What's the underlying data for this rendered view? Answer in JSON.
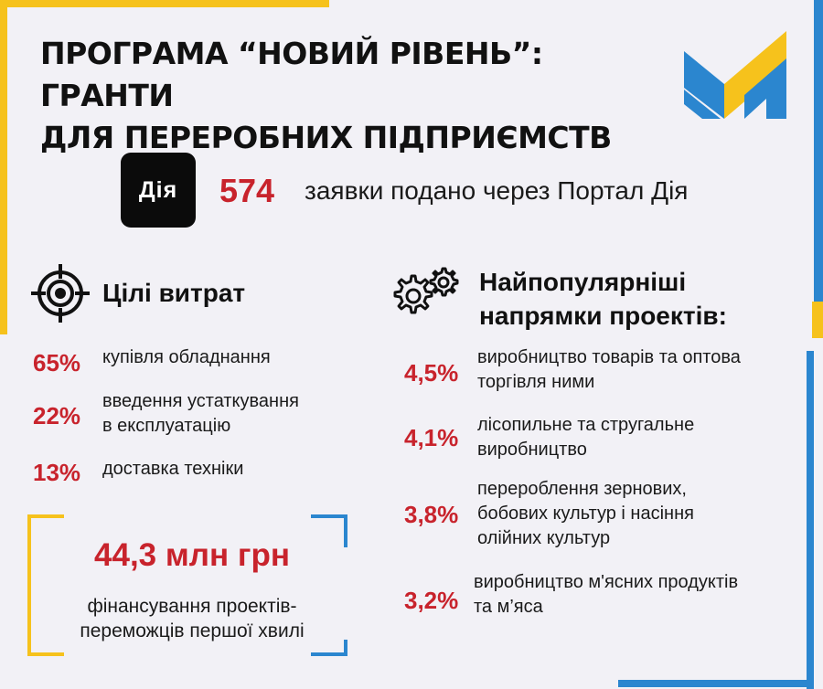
{
  "header": {
    "title_line1": "ПРОГРАМА “НОВИЙ РІВЕНЬ”: ГРАНТИ",
    "title_line2": "ДЛЯ ПЕРЕРОБНИХ ПІДПРИЄМСТВ"
  },
  "diia": {
    "badge_label": "Дія",
    "count": "574",
    "count_text": "заявки подано через Портал Дія"
  },
  "costs": {
    "title": "Цілі витрат",
    "icon": "target-icon",
    "items": [
      {
        "percent": "65%",
        "line1": "купівля обладнання",
        "line2": ""
      },
      {
        "percent": "22%",
        "line1": "введення устаткування",
        "line2": "в експлуатацію"
      },
      {
        "percent": "13%",
        "line1": "доставка техніки",
        "line2": ""
      }
    ]
  },
  "popular": {
    "title_line1": "Найпопулярніші",
    "title_line2": "напрямки проектів:",
    "icon": "gears-icon",
    "items": [
      {
        "percent": "4,5%",
        "line1": "виробництво товарів та оптова",
        "line2": "торгівля ними",
        "line3": ""
      },
      {
        "percent": "4,1%",
        "line1": "лісопильне та стругальне",
        "line2": "виробництво",
        "line3": ""
      },
      {
        "percent": "3,8%",
        "line1": "перероблення зернових,",
        "line2": "бобових культур і насіння",
        "line3": "олійних культур"
      },
      {
        "percent": "3,2%",
        "line1": "виробництво м'ясних продуктів",
        "line2": "та м’яса",
        "line3": ""
      }
    ]
  },
  "funding": {
    "amount": "44,3 млн грн",
    "desc_line1": "фінансування проектів-",
    "desc_line2": "переможців першої хвилі"
  },
  "colors": {
    "accent_red": "#c8232c",
    "yellow": "#f6c21c",
    "blue": "#2b86cf",
    "background": "#f2f1f6"
  }
}
